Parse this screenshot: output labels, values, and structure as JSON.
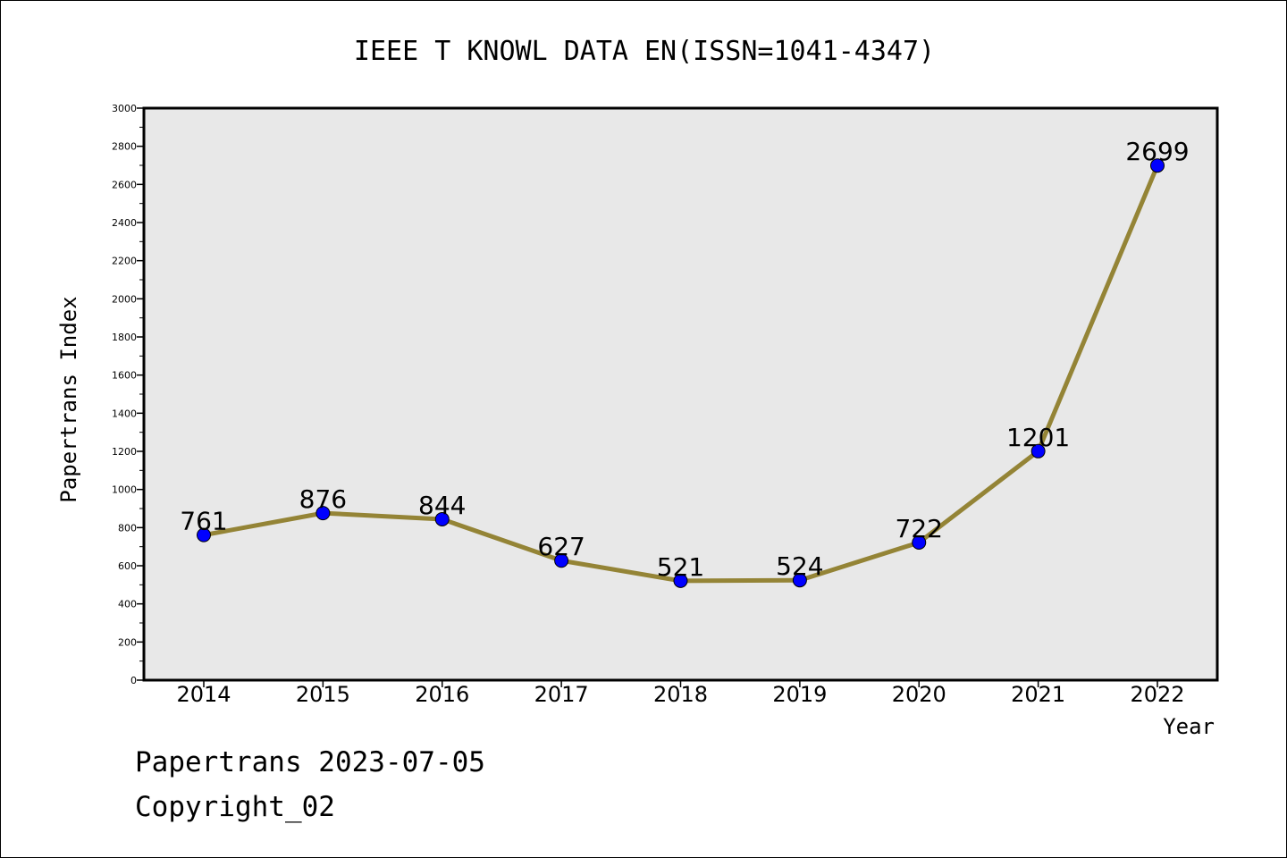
{
  "chart_data": {
    "type": "line",
    "title": "IEEE T KNOWL DATA EN(ISSN=1041-4347)",
    "xlabel": "Year",
    "ylabel": "Papertrans Index",
    "categories": [
      "2014",
      "2015",
      "2016",
      "2017",
      "2018",
      "2019",
      "2020",
      "2021",
      "2022"
    ],
    "series": [
      {
        "values": [
          761,
          876,
          844,
          627,
          521,
          524,
          722,
          1201,
          2699
        ]
      }
    ],
    "ylim": [
      0,
      3000
    ],
    "yticks": [
      "0",
      "200",
      "400",
      "600",
      "800",
      "1000",
      "1200",
      "1400",
      "1600",
      "1800",
      "2000",
      "2200",
      "2400",
      "2600",
      "2800",
      "3000"
    ],
    "data_labels": [
      "761",
      "876",
      "844",
      "627",
      "521",
      "524",
      "722",
      "1201",
      "2699"
    ],
    "grid": false,
    "legend": "none",
    "colors": {
      "line": "#948436",
      "marker": "#0000ff",
      "plot_background": "#e8e8e8",
      "axis": "#000000"
    }
  },
  "footer": {
    "line1": "Papertrans 2023-07-05",
    "line2": "Copyright_02"
  }
}
